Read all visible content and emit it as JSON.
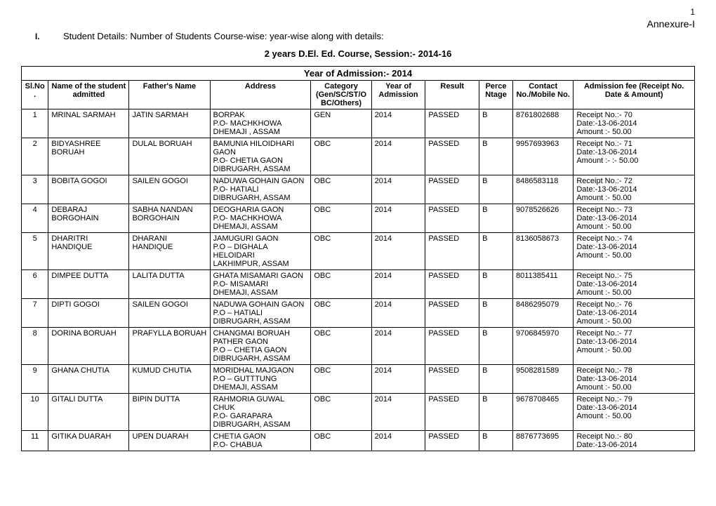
{
  "page_number": "1",
  "annexure": "Annexure-I",
  "section_roman": "I.",
  "section_text": "Student Details: Number of Students Course-wise: year-wise along with details:",
  "course_title": "2 years D.El. Ed. Course, Session:- 2014-16",
  "year_of_admission_header": "Year of  Admission:- 2014",
  "columns": {
    "sl": "Sl.No.",
    "name": "Name of the student admitted",
    "father": "Father's Name",
    "address": "Address",
    "category": "Category (Gen/SC/ST/OBC/Others)",
    "year": "Year of Admission",
    "result": "Result",
    "perc": "Perce Ntage",
    "contact": "Contact No./Mobile No.",
    "fee": "Admission fee (Receipt No. Date & Amount)"
  },
  "rows": [
    {
      "sl": "1",
      "name": "MRINAL SARMAH",
      "father": "JATIN SARMAH",
      "address": "BORPAK\nP.O- MACHKHOWA\nDHEMAJI , ASSAM",
      "category": "GEN",
      "year": "2014",
      "result": "PASSED",
      "perc": "B",
      "contact": "8761802688",
      "fee": "Receipt No.:- 70\nDate:-13-06-2014\nAmount :- 50.00"
    },
    {
      "sl": "2",
      "name": "BIDYASHREE BORUAH",
      "father": "DULAL BORUAH",
      "address": "BAMUNIA HILOIDHARI GAON\nP.O- CHETIA GAON\nDIBRUGARH, ASSAM",
      "category": "OBC",
      "year": "2014",
      "result": "PASSED",
      "perc": "B",
      "contact": "9957693963",
      "fee": "Receipt No.:- 71\nDate:-13-06-2014\nAmount :- :- 50.00"
    },
    {
      "sl": "3",
      "name": "BOBITA GOGOI",
      "father": "SAILEN GOGOI",
      "address": "NADUWA GOHAIN GAON\nP.O- HATIALI\nDIBRUGARH, ASSAM",
      "category": "OBC",
      "year": "2014",
      "result": "PASSED",
      "perc": "B",
      "contact": "8486583118",
      "fee": "Receipt No.:- 72\nDate:-13-06-2014\nAmount :- 50.00"
    },
    {
      "sl": "4",
      "name": "DEBARAJ BORGOHAIN",
      "father": "SABHA NANDAN BORGOHAIN",
      "address": "DEOGHARIA GAON\nP.O- MACHKHOWA\nDHEMAJI, ASSAM",
      "category": "OBC",
      "year": "2014",
      "result": "PASSED",
      "perc": "B",
      "contact": "9078526626",
      "fee": "Receipt No.:- 73\nDate:-13-06-2014\nAmount :- 50.00"
    },
    {
      "sl": "5",
      "name": "DHARITRI HANDIQUE",
      "father": "DHARANI HANDIQUE",
      "address": "JAMUGURI GAON\nP.O – DIGHALA HELOIDARI\nLAKHIMPUR, ASSAM",
      "category": "OBC",
      "year": "2014",
      "result": "PASSED",
      "perc": "B",
      "contact": "8136058673",
      "fee": "Receipt No.:- 74\nDate:-13-06-2014\nAmount :- 50.00"
    },
    {
      "sl": "6",
      "name": "DIMPEE DUTTA",
      "father": "LALITA DUTTA",
      "address": "GHATA MISAMARI GAON\nP.O- MISAMARI\nDHEMAJI, ASSAM",
      "category": "OBC",
      "year": "2014",
      "result": "PASSED",
      "perc": "B",
      "contact": "8011385411",
      "fee": "Receipt No.:- 75\nDate:-13-06-2014\nAmount :- 50.00"
    },
    {
      "sl": "7",
      "name": "DIPTI GOGOI",
      "father": "SAILEN GOGOI",
      "address": "NADUWA GOHAIN GAON\nP.O – HATIALI\nDIBRUGARH, ASSAM",
      "category": "OBC",
      "year": "2014",
      "result": "PASSED",
      "perc": "B",
      "contact": "8486295079",
      "fee": "Receipt No.:- 76\nDate:-13-06-2014\nAmount :- 50.00"
    },
    {
      "sl": "8",
      "name": "DORINA BORUAH",
      "father": "PRAFYLLA BORUAH",
      "address": "CHANGMAI BORUAH PATHER GAON\nP.O – CHETIA GAON\nDIBRUGARH, ASSAM",
      "category": "OBC",
      "year": "2014",
      "result": "PASSED",
      "perc": "B",
      "contact": "9706845970",
      "fee": "Receipt No.:- 77\nDate:-13-06-2014\nAmount :- 50.00"
    },
    {
      "sl": "9",
      "name": "GHANA CHUTIA",
      "father": "KUMUD CHUTIA",
      "address": "MORIDHAL MAJGAON\nP.O – GUTTTUNG\nDHEMAJI, ASSAM",
      "category": "OBC",
      "year": "2014",
      "result": "PASSED",
      "perc": "B",
      "contact": "9508281589",
      "fee": "Receipt No.:- 78\nDate:-13-06-2014\nAmount :- 50.00"
    },
    {
      "sl": "10",
      "name": "GITALI DUTTA",
      "father": "BIPIN DUTTA",
      "address": "RAHMORIA GUWAL CHUK\nP.O- GARAPARA\nDIBRUGARH, ASSAM",
      "category": "OBC",
      "year": "2014",
      "result": "PASSED",
      "perc": "B",
      "contact": "9678708465",
      "fee": "Receipt No.:- 79\nDate:-13-06-2014\nAmount :- 50.00"
    },
    {
      "sl": "11",
      "name": "GITIKA DUARAH",
      "father": "UPEN DUARAH",
      "address": "CHETIA GAON\nP.O- CHABUA",
      "category": "OBC",
      "year": "2014",
      "result": "PASSED",
      "perc": "B",
      "contact": "8876773695",
      "fee": "Receipt No.:- 80\nDate:-13-06-2014"
    }
  ]
}
